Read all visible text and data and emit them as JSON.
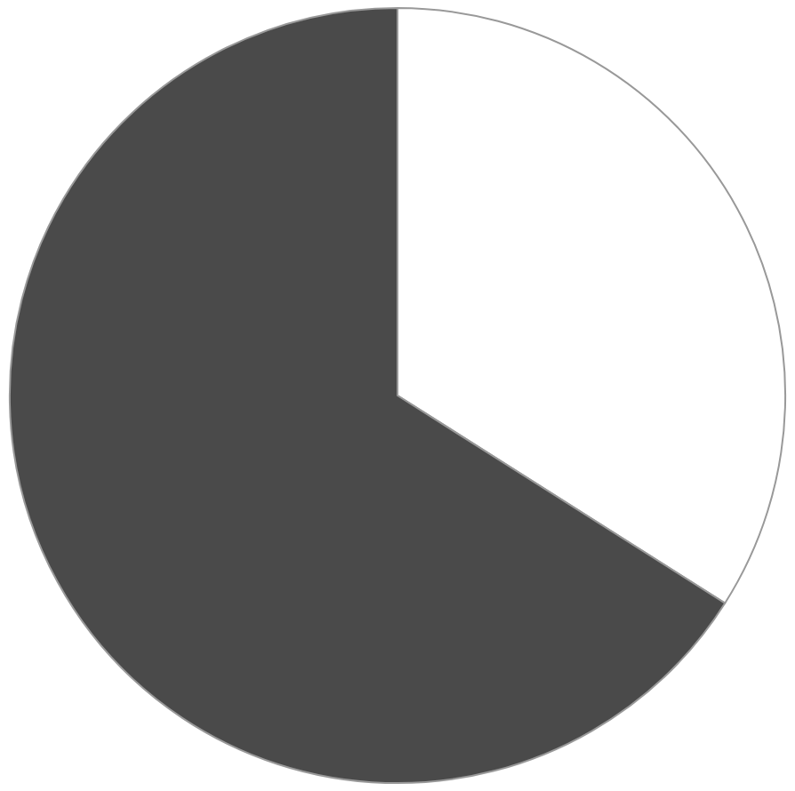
{
  "chart_data": {
    "type": "pie",
    "categories": [
      null,
      null
    ],
    "values": [
      34,
      66
    ],
    "colors": [
      "#ffffff",
      "#4a4a4a"
    ]
  }
}
